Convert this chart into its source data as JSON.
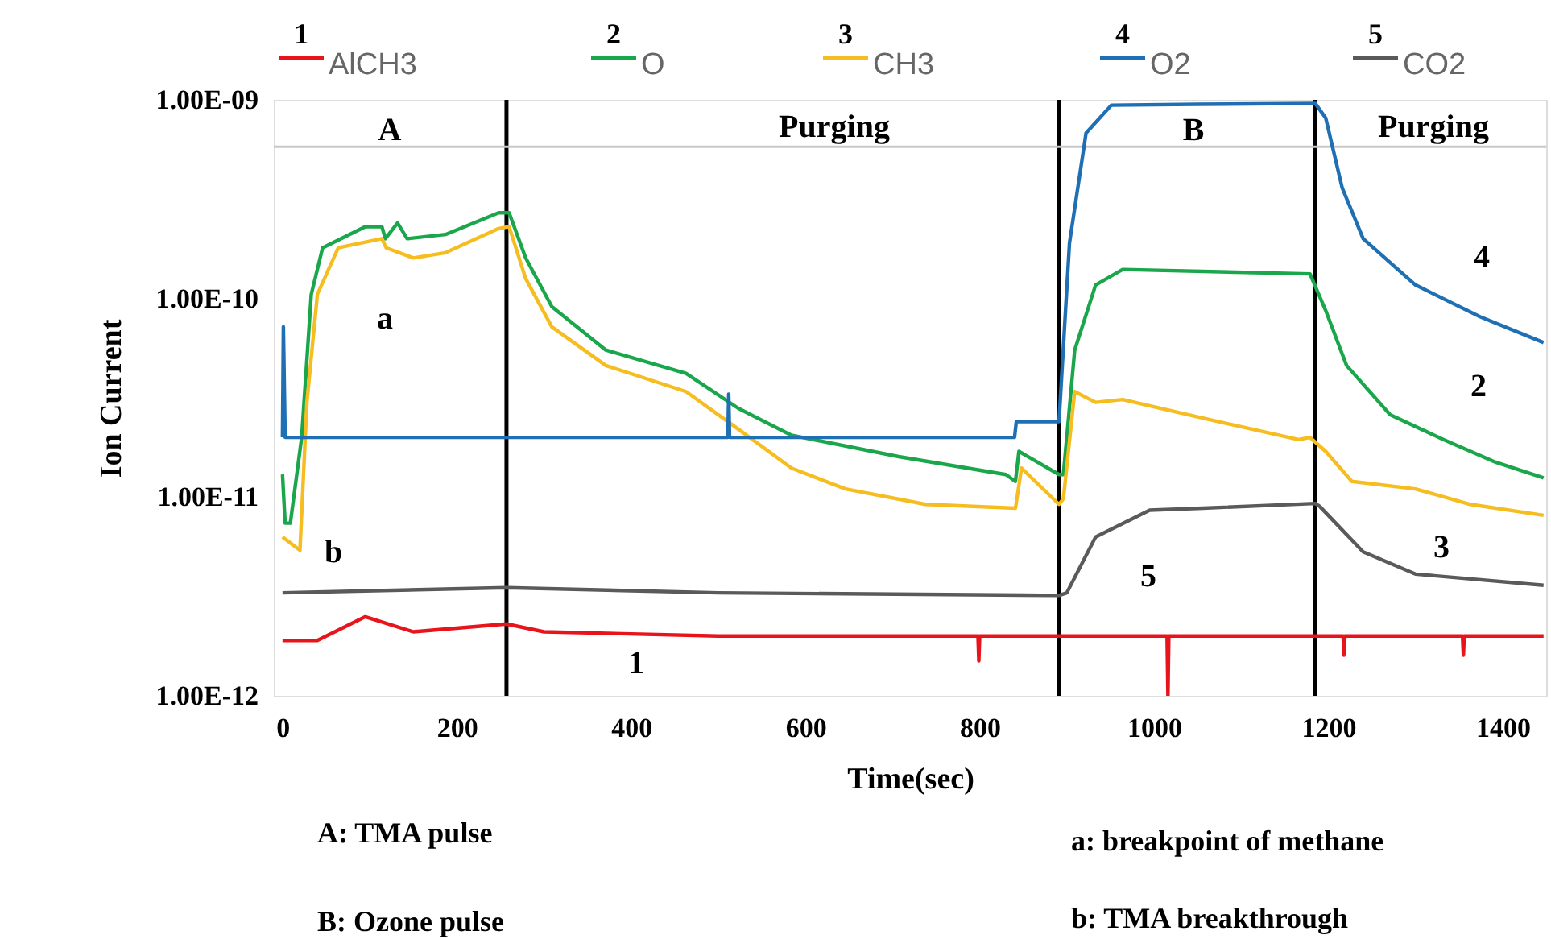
{
  "chart_data": {
    "type": "line",
    "xlabel": "Time(sec)",
    "ylabel": "Ion Current",
    "log": "y",
    "grid": false,
    "legend": "top",
    "xlim": [
      -10,
      1450
    ],
    "xticks": [
      0,
      200,
      400,
      600,
      800,
      1000,
      1200,
      1400
    ],
    "ylim": [
      1e-12,
      1e-09
    ],
    "yticks": [
      {
        "value": 1e-12,
        "label": "1.00E-12"
      },
      {
        "value": 1e-11,
        "label": "1.00E-11"
      },
      {
        "value": 1e-10,
        "label": "1.00E-10"
      },
      {
        "value": 1e-09,
        "label": "1.00E-09"
      }
    ],
    "series": [
      {
        "name": "AlCH3",
        "color": "#e8141c",
        "x": [
          0,
          40,
          95,
          150,
          257,
          300,
          500,
          798,
          799,
          800,
          900,
          1015,
          1016,
          1017,
          1100,
          1217,
          1218,
          1219,
          1300,
          1354,
          1355,
          1356,
          1447
        ],
        "values": [
          1.9e-12,
          1.9e-12,
          2.5e-12,
          2.1e-12,
          2.3e-12,
          2.1e-12,
          2e-12,
          2e-12,
          1.5e-12,
          2e-12,
          2e-12,
          2e-12,
          1e-12,
          2e-12,
          2e-12,
          2e-12,
          1.6e-12,
          2e-12,
          2e-12,
          2e-12,
          1.6e-12,
          2e-12,
          2e-12
        ]
      },
      {
        "name": "O",
        "color": "#1aa64a",
        "x": [
          0,
          3,
          9,
          22,
          33,
          46,
          95,
          114,
          118,
          132,
          143,
          187,
          248,
          260,
          279,
          309,
          371,
          463,
          523,
          584,
          707,
          830,
          841,
          845,
          891,
          896,
          909,
          933,
          964,
          1179,
          1197,
          1221,
          1271,
          1332,
          1392,
          1447
        ],
        "values": [
          1.3e-11,
          7.4e-12,
          7.4e-12,
          2e-11,
          1.05e-10,
          1.8e-10,
          2.3e-10,
          2.3e-10,
          2e-10,
          2.4e-10,
          2e-10,
          2.1e-10,
          2.7e-10,
          2.7e-10,
          1.6e-10,
          9.1e-11,
          5.5e-11,
          4.2e-11,
          2.8e-11,
          2.05e-11,
          1.6e-11,
          1.3e-11,
          1.2e-11,
          1.7e-11,
          1.3e-11,
          1.3e-11,
          5.5e-11,
          1.17e-10,
          1.4e-10,
          1.33e-10,
          8.7e-11,
          4.6e-11,
          2.6e-11,
          1.95e-11,
          1.5e-11,
          1.25e-11
        ]
      },
      {
        "name": "CH3",
        "color": "#f5bd1f",
        "x": [
          0,
          20,
          28,
          40,
          64,
          114,
          119,
          150,
          187,
          248,
          260,
          279,
          309,
          371,
          463,
          523,
          584,
          646,
          738,
          841,
          848,
          891,
          896,
          909,
          933,
          964,
          1056,
          1166,
          1179,
          1197,
          1227,
          1300,
          1363,
          1447
        ],
        "values": [
          6.3e-12,
          5.4e-12,
          3e-11,
          1.05e-10,
          1.8e-10,
          2e-10,
          1.8e-10,
          1.6e-10,
          1.7e-10,
          2.25e-10,
          2.3e-10,
          1.26e-10,
          7.2e-11,
          4.6e-11,
          3.4e-11,
          2.2e-11,
          1.4e-11,
          1.1e-11,
          9.2e-12,
          8.8e-12,
          1.4e-11,
          9.2e-12,
          9.8e-12,
          3.4e-11,
          3e-11,
          3.1e-11,
          2.5e-11,
          1.95e-11,
          2e-11,
          1.7e-11,
          1.2e-11,
          1.1e-11,
          9.2e-12,
          8.1e-12
        ]
      },
      {
        "name": "O2",
        "color": "#1f6fb4",
        "x": [
          0,
          1,
          3,
          250,
          511,
          512,
          513,
          840,
          842,
          891,
          903,
          922,
          951,
          1050,
          1185,
          1197,
          1216,
          1240,
          1300,
          1374,
          1447
        ],
        "values": [
          2e-11,
          7.2e-11,
          2e-11,
          2e-11,
          2e-11,
          3.3e-11,
          2e-11,
          2e-11,
          2.4e-11,
          2.4e-11,
          1.9e-10,
          6.8e-10,
          9.4e-10,
          9.5e-10,
          9.6e-10,
          8.1e-10,
          3.6e-10,
          2e-10,
          1.17e-10,
          8.1e-11,
          6e-11
        ]
      },
      {
        "name": "CO2",
        "color": "#5a5a5a",
        "x": [
          0,
          257,
          500,
          891,
          900,
          933,
          995,
          1056,
          1185,
          1190,
          1240,
          1300,
          1447
        ],
        "values": [
          3.3e-12,
          3.5e-12,
          3.3e-12,
          3.2e-12,
          3.3e-12,
          6.3e-12,
          8.6e-12,
          8.8e-12,
          9.3e-12,
          9e-12,
          5.3e-12,
          4.1e-12,
          3.6e-12
        ]
      }
    ],
    "ref_lines": [
      {
        "axis": "x",
        "value": 257,
        "color": "#000000"
      },
      {
        "axis": "x",
        "value": 891,
        "color": "#000000"
      },
      {
        "axis": "x",
        "value": 1185,
        "color": "#000000"
      },
      {
        "axis": "y",
        "value": 5.8e-10,
        "color": "#c8c8c8"
      }
    ],
    "annotations": [
      "1",
      "2",
      "3",
      "4",
      "5",
      "A: TMA pulse",
      "B: Ozone pulse",
      "a: breakpoint of methane",
      "b: TMA breakthrough",
      "1",
      "2",
      "3",
      "4",
      "5",
      "a",
      "b",
      "A",
      "Purging",
      "B",
      "Purging"
    ]
  }
}
